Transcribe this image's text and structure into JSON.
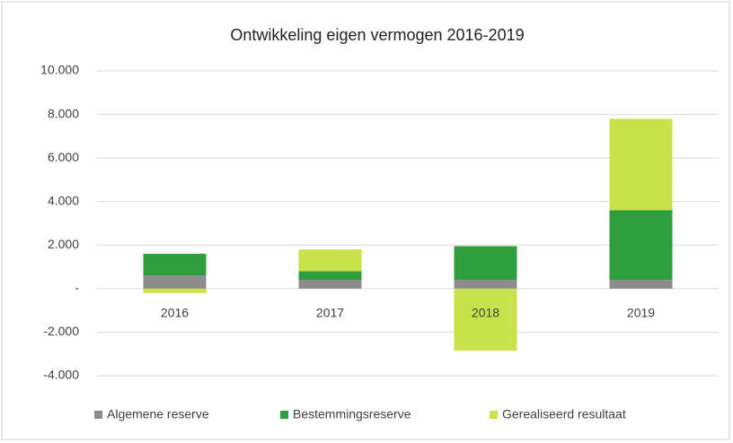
{
  "chart_data": {
    "type": "stacked_bar",
    "title": "Ontwikkeling eigen vermogen 2016-2019",
    "categories": [
      "2016",
      "2017",
      "2018",
      "2019"
    ],
    "series": [
      {
        "name": "Algemene reserve",
        "color": "#8c8c8c",
        "values": [
          600,
          400,
          400,
          400
        ]
      },
      {
        "name": "Bestemmingsreserve",
        "color": "#2e9e3e",
        "values": [
          1000,
          400,
          1550,
          3200
        ]
      },
      {
        "name": "Gerealiseerd resultaat",
        "color": "#c8e34a",
        "values": [
          -200,
          1000,
          -2850,
          4200
        ]
      }
    ],
    "ylim": [
      -4000,
      10000
    ],
    "yticks": [
      {
        "value": -4000,
        "label": "-4.000"
      },
      {
        "value": -2000,
        "label": "-2.000"
      },
      {
        "value": 0,
        "label": "-"
      },
      {
        "value": 2000,
        "label": "2.000"
      },
      {
        "value": 4000,
        "label": "4.000"
      },
      {
        "value": 6000,
        "label": "6.000"
      },
      {
        "value": 8000,
        "label": "8.000"
      },
      {
        "value": 10000,
        "label": "10.000"
      }
    ],
    "grid": true,
    "legend": "bottom"
  }
}
